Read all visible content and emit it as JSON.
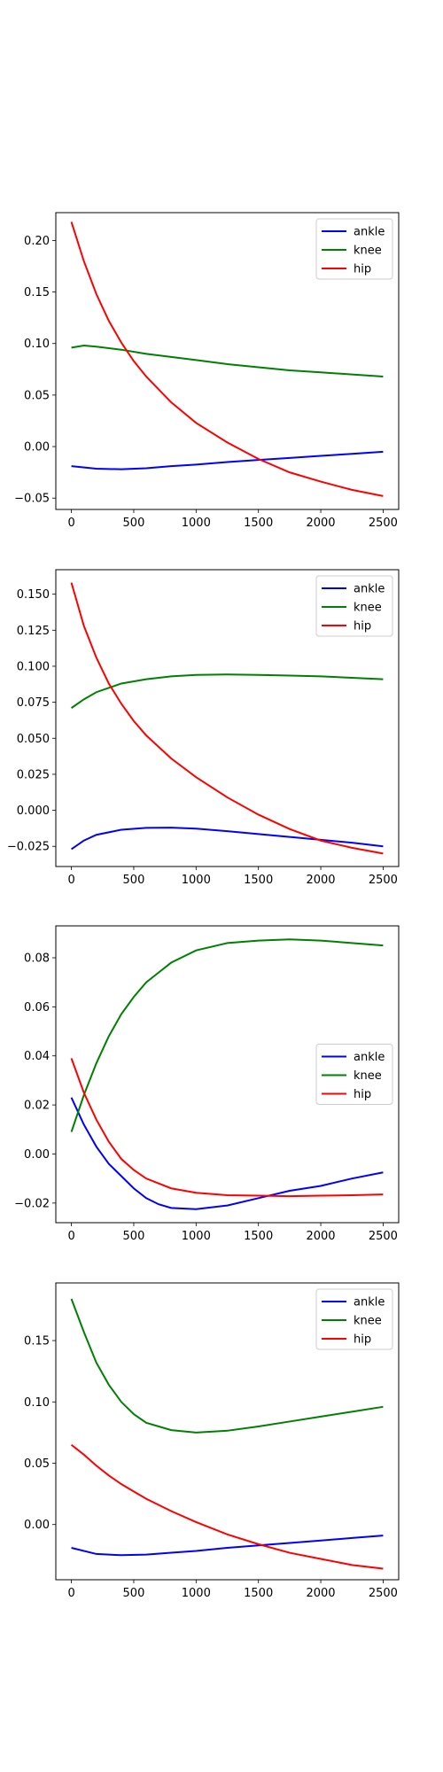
{
  "chart_data": [
    {
      "type": "line",
      "xlim": [
        -125,
        2625
      ],
      "ylim": [
        -0.061,
        0.227
      ],
      "x_ticks": [
        0,
        500,
        1000,
        1500,
        2000,
        2500
      ],
      "x_tick_labels": [
        "0",
        "500",
        "1000",
        "1500",
        "2000",
        "2500"
      ],
      "y_ticks": [
        -0.05,
        0.0,
        0.05,
        0.1,
        0.15,
        0.2
      ],
      "y_tick_labels": [
        "−0.05",
        "0.00",
        "0.05",
        "0.10",
        "0.15",
        "0.20"
      ],
      "legend_position": "top-right",
      "series": [
        {
          "name": "ankle",
          "color": "#0000ff",
          "points": [
            [
              0,
              -0.019
            ],
            [
              200,
              -0.0215
            ],
            [
              400,
              -0.022
            ],
            [
              600,
              -0.021
            ],
            [
              800,
              -0.019
            ],
            [
              1000,
              -0.0175
            ],
            [
              1250,
              -0.015
            ],
            [
              1500,
              -0.013
            ],
            [
              1750,
              -0.011
            ],
            [
              2000,
              -0.009
            ],
            [
              2250,
              -0.007
            ],
            [
              2500,
              -0.005
            ]
          ]
        },
        {
          "name": "knee",
          "color": "#008000",
          "points": [
            [
              0,
              0.096
            ],
            [
              100,
              0.098
            ],
            [
              200,
              0.097
            ],
            [
              400,
              0.094
            ],
            [
              600,
              0.09
            ],
            [
              800,
              0.087
            ],
            [
              1000,
              0.084
            ],
            [
              1250,
              0.08
            ],
            [
              1500,
              0.077
            ],
            [
              1750,
              0.074
            ],
            [
              2000,
              0.072
            ],
            [
              2250,
              0.07
            ],
            [
              2500,
              0.068
            ]
          ]
        },
        {
          "name": "hip",
          "color": "#ff0000",
          "points": [
            [
              0,
              0.218
            ],
            [
              100,
              0.18
            ],
            [
              200,
              0.148
            ],
            [
              300,
              0.122
            ],
            [
              400,
              0.101
            ],
            [
              500,
              0.083
            ],
            [
              600,
              0.068
            ],
            [
              800,
              0.043
            ],
            [
              1000,
              0.023
            ],
            [
              1250,
              0.004
            ],
            [
              1500,
              -0.012
            ],
            [
              1750,
              -0.025
            ],
            [
              2000,
              -0.034
            ],
            [
              2250,
              -0.042
            ],
            [
              2500,
              -0.048
            ]
          ]
        }
      ]
    },
    {
      "type": "line",
      "xlim": [
        -125,
        2625
      ],
      "ylim": [
        -0.039,
        0.167
      ],
      "x_ticks": [
        0,
        500,
        1000,
        1500,
        2000,
        2500
      ],
      "x_tick_labels": [
        "0",
        "500",
        "1000",
        "1500",
        "2000",
        "2500"
      ],
      "y_ticks": [
        -0.025,
        0.0,
        0.025,
        0.05,
        0.075,
        0.1,
        0.125,
        0.15
      ],
      "y_tick_labels": [
        "−0.025",
        "0.000",
        "0.025",
        "0.050",
        "0.075",
        "0.100",
        "0.125",
        "0.150"
      ],
      "legend_position": "top-right",
      "series": [
        {
          "name": "ankle",
          "color": "#0000ff",
          "points": [
            [
              0,
              -0.027
            ],
            [
              100,
              -0.021
            ],
            [
              200,
              -0.017
            ],
            [
              400,
              -0.0135
            ],
            [
              600,
              -0.0122
            ],
            [
              800,
              -0.012
            ],
            [
              1000,
              -0.0127
            ],
            [
              1250,
              -0.0145
            ],
            [
              1500,
              -0.0165
            ],
            [
              1750,
              -0.0185
            ],
            [
              2000,
              -0.0205
            ],
            [
              2250,
              -0.0225
            ],
            [
              2500,
              -0.025
            ]
          ]
        },
        {
          "name": "knee",
          "color": "#008000",
          "points": [
            [
              0,
              0.071
            ],
            [
              100,
              0.077
            ],
            [
              200,
              0.082
            ],
            [
              400,
              0.088
            ],
            [
              600,
              0.091
            ],
            [
              800,
              0.093
            ],
            [
              1000,
              0.094
            ],
            [
              1250,
              0.0943
            ],
            [
              1500,
              0.094
            ],
            [
              1750,
              0.0935
            ],
            [
              2000,
              0.093
            ],
            [
              2250,
              0.092
            ],
            [
              2500,
              0.091
            ]
          ]
        },
        {
          "name": "hip",
          "color": "#ff0000",
          "points": [
            [
              0,
              0.158
            ],
            [
              100,
              0.128
            ],
            [
              200,
              0.106
            ],
            [
              300,
              0.088
            ],
            [
              400,
              0.074
            ],
            [
              500,
              0.062
            ],
            [
              600,
              0.052
            ],
            [
              800,
              0.036
            ],
            [
              1000,
              0.023
            ],
            [
              1250,
              0.009
            ],
            [
              1500,
              -0.003
            ],
            [
              1750,
              -0.013
            ],
            [
              2000,
              -0.021
            ],
            [
              2250,
              -0.026
            ],
            [
              2500,
              -0.03
            ]
          ]
        }
      ]
    },
    {
      "type": "line",
      "xlim": [
        -125,
        2625
      ],
      "ylim": [
        -0.028,
        0.093
      ],
      "x_ticks": [
        0,
        500,
        1000,
        1500,
        2000,
        2500
      ],
      "x_tick_labels": [
        "0",
        "500",
        "1000",
        "1500",
        "2000",
        "2500"
      ],
      "y_ticks": [
        -0.02,
        0.0,
        0.02,
        0.04,
        0.06,
        0.08
      ],
      "y_tick_labels": [
        "−0.02",
        "0.00",
        "0.02",
        "0.04",
        "0.06",
        "0.08"
      ],
      "legend_position": "center-right",
      "series": [
        {
          "name": "ankle",
          "color": "#0000ff",
          "points": [
            [
              0,
              0.023
            ],
            [
              100,
              0.012
            ],
            [
              200,
              0.003
            ],
            [
              300,
              -0.004
            ],
            [
              400,
              -0.009
            ],
            [
              500,
              -0.014
            ],
            [
              600,
              -0.018
            ],
            [
              700,
              -0.0205
            ],
            [
              800,
              -0.022
            ],
            [
              1000,
              -0.0225
            ],
            [
              1250,
              -0.021
            ],
            [
              1500,
              -0.018
            ],
            [
              1750,
              -0.015
            ],
            [
              2000,
              -0.013
            ],
            [
              2250,
              -0.01
            ],
            [
              2500,
              -0.0075
            ]
          ]
        },
        {
          "name": "knee",
          "color": "#008000",
          "points": [
            [
              0,
              0.009
            ],
            [
              100,
              0.024
            ],
            [
              200,
              0.037
            ],
            [
              300,
              0.048
            ],
            [
              400,
              0.057
            ],
            [
              500,
              0.064
            ],
            [
              600,
              0.07
            ],
            [
              700,
              0.074
            ],
            [
              800,
              0.078
            ],
            [
              1000,
              0.083
            ],
            [
              1250,
              0.086
            ],
            [
              1500,
              0.087
            ],
            [
              1750,
              0.0875
            ],
            [
              2000,
              0.087
            ],
            [
              2250,
              0.086
            ],
            [
              2500,
              0.085
            ]
          ]
        },
        {
          "name": "hip",
          "color": "#ff0000",
          "points": [
            [
              0,
              0.039
            ],
            [
              100,
              0.025
            ],
            [
              200,
              0.014
            ],
            [
              300,
              0.005
            ],
            [
              400,
              -0.002
            ],
            [
              500,
              -0.0065
            ],
            [
              600,
              -0.01
            ],
            [
              800,
              -0.014
            ],
            [
              1000,
              -0.0158
            ],
            [
              1250,
              -0.0168
            ],
            [
              1500,
              -0.017
            ],
            [
              1750,
              -0.0172
            ],
            [
              2000,
              -0.017
            ],
            [
              2250,
              -0.0168
            ],
            [
              2500,
              -0.0165
            ]
          ]
        }
      ]
    },
    {
      "type": "line",
      "xlim": [
        -125,
        2625
      ],
      "ylim": [
        -0.045,
        0.197
      ],
      "x_ticks": [
        0,
        500,
        1000,
        1500,
        2000,
        2500
      ],
      "x_tick_labels": [
        "0",
        "500",
        "1000",
        "1500",
        "2000",
        "2500"
      ],
      "y_ticks": [
        0.0,
        0.05,
        0.1,
        0.15
      ],
      "y_tick_labels": [
        "0.00",
        "0.05",
        "0.10",
        "0.15"
      ],
      "legend_position": "top-right",
      "series": [
        {
          "name": "ankle",
          "color": "#0000ff",
          "points": [
            [
              0,
              -0.019
            ],
            [
              200,
              -0.024
            ],
            [
              400,
              -0.025
            ],
            [
              600,
              -0.0245
            ],
            [
              800,
              -0.023
            ],
            [
              1000,
              -0.0215
            ],
            [
              1250,
              -0.019
            ],
            [
              1500,
              -0.017
            ],
            [
              1750,
              -0.015
            ],
            [
              2000,
              -0.013
            ],
            [
              2250,
              -0.011
            ],
            [
              2500,
              -0.009
            ]
          ]
        },
        {
          "name": "knee",
          "color": "#008000",
          "points": [
            [
              0,
              0.184
            ],
            [
              100,
              0.157
            ],
            [
              200,
              0.132
            ],
            [
              300,
              0.114
            ],
            [
              400,
              0.1
            ],
            [
              500,
              0.09
            ],
            [
              600,
              0.083
            ],
            [
              800,
              0.077
            ],
            [
              1000,
              0.075
            ],
            [
              1250,
              0.0765
            ],
            [
              1500,
              0.08
            ],
            [
              1750,
              0.084
            ],
            [
              2000,
              0.088
            ],
            [
              2250,
              0.092
            ],
            [
              2500,
              0.096
            ]
          ]
        },
        {
          "name": "hip",
          "color": "#ff0000",
          "points": [
            [
              0,
              0.065
            ],
            [
              100,
              0.057
            ],
            [
              200,
              0.048
            ],
            [
              300,
              0.04
            ],
            [
              400,
              0.033
            ],
            [
              500,
              0.027
            ],
            [
              600,
              0.021
            ],
            [
              800,
              0.011
            ],
            [
              1000,
              0.002
            ],
            [
              1250,
              -0.008
            ],
            [
              1500,
              -0.016
            ],
            [
              1750,
              -0.023
            ],
            [
              2000,
              -0.028
            ],
            [
              2250,
              -0.033
            ],
            [
              2500,
              -0.036
            ]
          ]
        }
      ]
    }
  ]
}
